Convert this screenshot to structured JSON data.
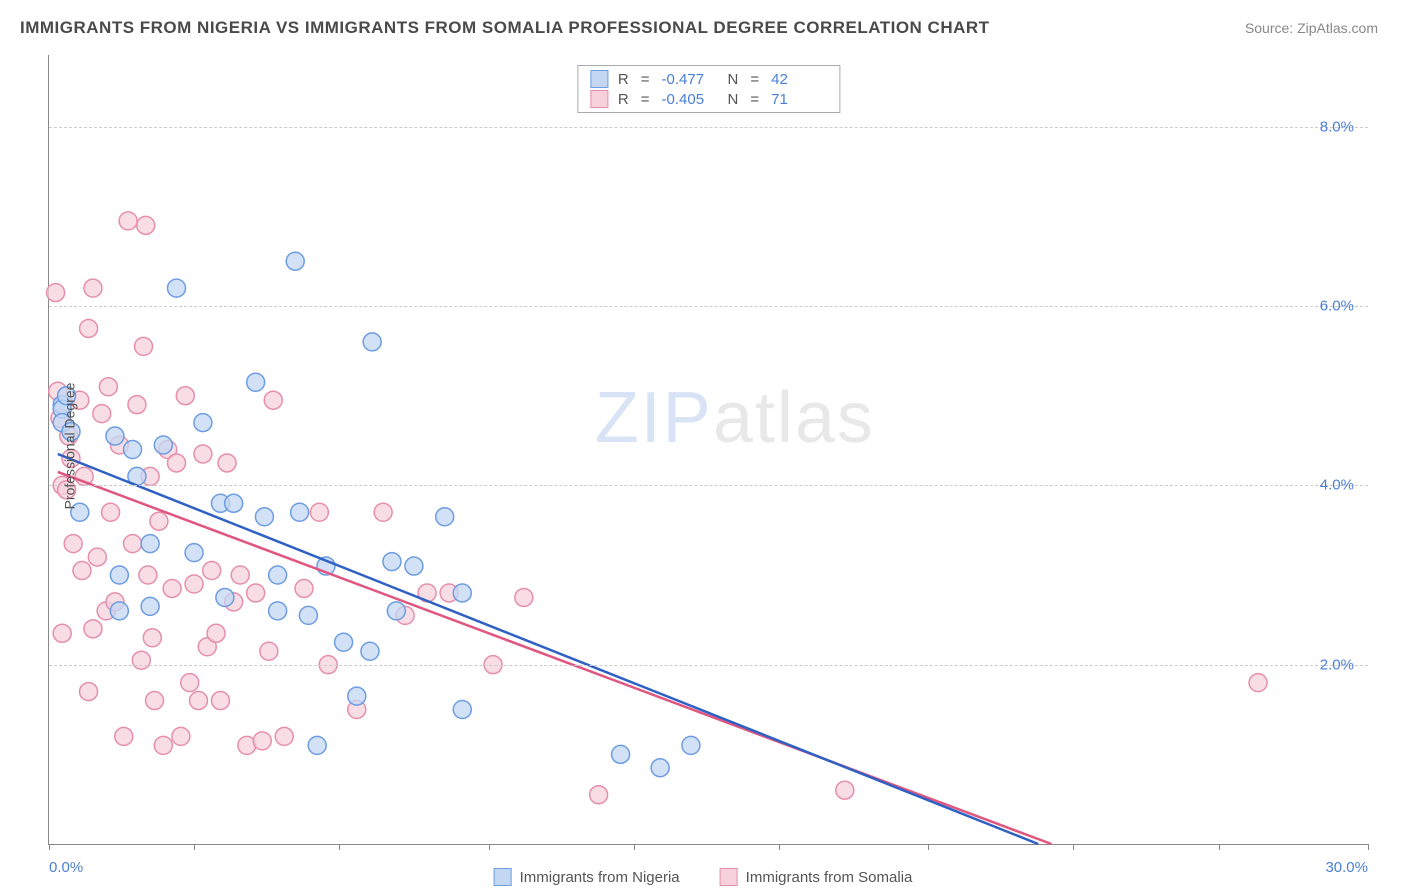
{
  "title": "IMMIGRANTS FROM NIGERIA VS IMMIGRANTS FROM SOMALIA PROFESSIONAL DEGREE CORRELATION CHART",
  "source": "Source: ZipAtlas.com",
  "y_axis_label": "Professional Degree",
  "watermark": {
    "zip": "ZIP",
    "atlas": "atlas"
  },
  "chart": {
    "type": "scatter",
    "xlim": [
      0,
      30
    ],
    "ylim": [
      0,
      8.8
    ],
    "x_ticks": [
      0,
      3.3,
      6.6,
      10,
      13.3,
      16.6,
      20,
      23.3,
      26.6,
      30
    ],
    "x_tick_labels_visible": {
      "0": "0.0%",
      "30": "30.0%"
    },
    "y_ticks": [
      2.0,
      4.0,
      6.0,
      8.0
    ],
    "y_tick_labels": [
      "2.0%",
      "4.0%",
      "6.0%",
      "8.0%"
    ],
    "grid_color": "#cccccc",
    "background_color": "#ffffff",
    "axis_color": "#888888",
    "tick_label_color": "#4a7fd6",
    "marker_radius": 9,
    "marker_stroke_width": 1.5,
    "trend_line_width": 2.5
  },
  "series": [
    {
      "name": "Immigrants from Nigeria",
      "fill": "#c3d7f3",
      "stroke": "#6d9de2",
      "line_color": "#2f61c4",
      "R": "-0.477",
      "N": "42",
      "trend": {
        "x1": 0.2,
        "y1": 4.35,
        "x2": 22.5,
        "y2": 0.0
      },
      "points": [
        [
          0.3,
          4.9
        ],
        [
          0.3,
          4.85
        ],
        [
          0.3,
          4.7
        ],
        [
          0.4,
          5.0
        ],
        [
          0.5,
          4.6
        ],
        [
          0.7,
          3.7
        ],
        [
          1.5,
          4.55
        ],
        [
          1.6,
          3.0
        ],
        [
          1.6,
          2.6
        ],
        [
          1.9,
          4.4
        ],
        [
          2.0,
          4.1
        ],
        [
          2.3,
          3.35
        ],
        [
          2.3,
          2.65
        ],
        [
          2.6,
          4.45
        ],
        [
          2.9,
          6.2
        ],
        [
          3.3,
          3.25
        ],
        [
          3.5,
          4.7
        ],
        [
          3.9,
          3.8
        ],
        [
          4.0,
          2.75
        ],
        [
          4.2,
          3.8
        ],
        [
          4.7,
          5.15
        ],
        [
          4.9,
          3.65
        ],
        [
          5.2,
          3.0
        ],
        [
          5.2,
          2.6
        ],
        [
          5.6,
          6.5
        ],
        [
          5.7,
          3.7
        ],
        [
          5.9,
          2.55
        ],
        [
          6.1,
          1.1
        ],
        [
          6.3,
          3.1
        ],
        [
          6.7,
          2.25
        ],
        [
          7.0,
          1.65
        ],
        [
          7.3,
          2.15
        ],
        [
          7.35,
          5.6
        ],
        [
          7.8,
          3.15
        ],
        [
          7.9,
          2.6
        ],
        [
          8.3,
          3.1
        ],
        [
          9.0,
          3.65
        ],
        [
          9.4,
          1.5
        ],
        [
          9.4,
          2.8
        ],
        [
          13.0,
          1.0
        ],
        [
          13.9,
          0.85
        ],
        [
          14.6,
          1.1
        ]
      ]
    },
    {
      "name": "Immigrants from Somalia",
      "fill": "#f6d1dc",
      "stroke": "#e68fad",
      "line_color": "#e0567f",
      "R": "-0.405",
      "N": "71",
      "trend": {
        "x1": 0.2,
        "y1": 4.15,
        "x2": 22.8,
        "y2": 0.0
      },
      "points": [
        [
          0.15,
          6.15
        ],
        [
          0.2,
          5.05
        ],
        [
          0.25,
          4.75
        ],
        [
          0.3,
          4.0
        ],
        [
          0.3,
          2.35
        ],
        [
          0.4,
          3.95
        ],
        [
          0.45,
          4.55
        ],
        [
          0.5,
          4.3
        ],
        [
          0.55,
          3.35
        ],
        [
          0.7,
          4.95
        ],
        [
          0.75,
          3.05
        ],
        [
          0.8,
          4.1
        ],
        [
          0.9,
          5.75
        ],
        [
          0.9,
          1.7
        ],
        [
          1.0,
          6.2
        ],
        [
          1.0,
          2.4
        ],
        [
          1.1,
          3.2
        ],
        [
          1.2,
          4.8
        ],
        [
          1.3,
          2.6
        ],
        [
          1.35,
          5.1
        ],
        [
          1.4,
          3.7
        ],
        [
          1.5,
          2.7
        ],
        [
          1.6,
          4.45
        ],
        [
          1.7,
          1.2
        ],
        [
          1.8,
          6.95
        ],
        [
          1.9,
          3.35
        ],
        [
          2.0,
          4.9
        ],
        [
          2.1,
          2.05
        ],
        [
          2.15,
          5.55
        ],
        [
          2.2,
          6.9
        ],
        [
          2.25,
          3.0
        ],
        [
          2.3,
          4.1
        ],
        [
          2.35,
          2.3
        ],
        [
          2.4,
          1.6
        ],
        [
          2.5,
          3.6
        ],
        [
          2.6,
          1.1
        ],
        [
          2.7,
          4.4
        ],
        [
          2.8,
          2.85
        ],
        [
          2.9,
          4.25
        ],
        [
          3.0,
          1.2
        ],
        [
          3.1,
          5.0
        ],
        [
          3.2,
          1.8
        ],
        [
          3.3,
          2.9
        ],
        [
          3.4,
          1.6
        ],
        [
          3.5,
          4.35
        ],
        [
          3.6,
          2.2
        ],
        [
          3.7,
          3.05
        ],
        [
          3.8,
          2.35
        ],
        [
          3.9,
          1.6
        ],
        [
          4.05,
          4.25
        ],
        [
          4.2,
          2.7
        ],
        [
          4.35,
          3.0
        ],
        [
          4.5,
          1.1
        ],
        [
          4.7,
          2.8
        ],
        [
          4.85,
          1.15
        ],
        [
          5.0,
          2.15
        ],
        [
          5.1,
          4.95
        ],
        [
          5.35,
          1.2
        ],
        [
          5.8,
          2.85
        ],
        [
          6.15,
          3.7
        ],
        [
          6.35,
          2.0
        ],
        [
          7.0,
          1.5
        ],
        [
          7.6,
          3.7
        ],
        [
          8.1,
          2.55
        ],
        [
          8.6,
          2.8
        ],
        [
          9.1,
          2.8
        ],
        [
          10.1,
          2.0
        ],
        [
          10.8,
          2.75
        ],
        [
          12.5,
          0.55
        ],
        [
          18.1,
          0.6
        ],
        [
          27.5,
          1.8
        ]
      ]
    }
  ],
  "stats_box": {
    "rows": [
      {
        "swatch_fill": "#c3d7f3",
        "swatch_stroke": "#6d9de2",
        "R": "-0.477",
        "N": "42"
      },
      {
        "swatch_fill": "#f6d1dc",
        "swatch_stroke": "#e68fad",
        "R": "-0.405",
        "N": "71"
      }
    ]
  },
  "bottom_legend": [
    {
      "swatch_fill": "#c3d7f3",
      "swatch_stroke": "#6d9de2",
      "label": "Immigrants from Nigeria"
    },
    {
      "swatch_fill": "#f6d1dc",
      "swatch_stroke": "#e68fad",
      "label": "Immigrants from Somalia"
    }
  ]
}
